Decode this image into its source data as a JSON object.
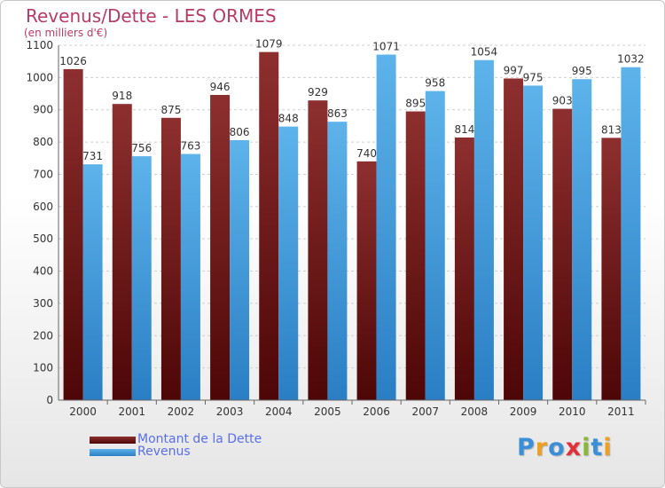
{
  "title": "Revenus/Dette - LES ORMES",
  "subtitle": "(en milliers d'€)",
  "logo": {
    "text": "Proxiti",
    "letters": [
      {
        "ch": "P",
        "color": "#3a8fd8"
      },
      {
        "ch": "r",
        "color": "#f0a020"
      },
      {
        "ch": "o",
        "color": "#3a8fd8"
      },
      {
        "ch": "x",
        "color": "#e0303a"
      },
      {
        "ch": "i",
        "color": "#8ab832"
      },
      {
        "ch": "t",
        "color": "#3a8fd8"
      },
      {
        "ch": "i",
        "color": "#f0a020"
      }
    ]
  },
  "chart_data": {
    "type": "bar",
    "title": "Revenus/Dette - LES ORMES",
    "subtitle": "(en milliers d'€)",
    "categories": [
      "2000",
      "2001",
      "2002",
      "2003",
      "2004",
      "2005",
      "2006",
      "2007",
      "2008",
      "2009",
      "2010",
      "2011"
    ],
    "series": [
      {
        "name": "Montant de la Dette",
        "color": "#7a1f1f",
        "values": [
          1026,
          918,
          875,
          946,
          1079,
          929,
          740,
          895,
          814,
          997,
          903,
          813
        ]
      },
      {
        "name": "Revenus",
        "color": "#4aa3e0",
        "values": [
          731,
          756,
          763,
          806,
          848,
          863,
          1071,
          958,
          1054,
          975,
          995,
          1032
        ]
      }
    ],
    "ylim": [
      0,
      1100
    ],
    "yticks": [
      0,
      100,
      200,
      300,
      400,
      500,
      600,
      700,
      800,
      900,
      1000,
      1100
    ],
    "grid": true,
    "legend": "bottom-left"
  }
}
